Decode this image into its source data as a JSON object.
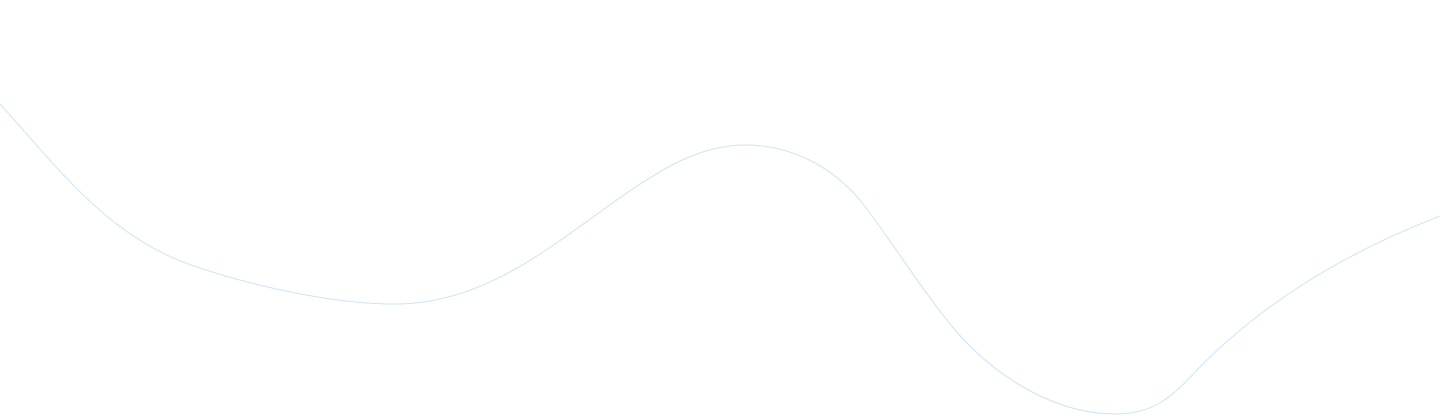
{
  "decoration": {
    "name": "decorative-wave",
    "stroke_color": "#cfe3f5",
    "background_color": "#ffffff"
  }
}
